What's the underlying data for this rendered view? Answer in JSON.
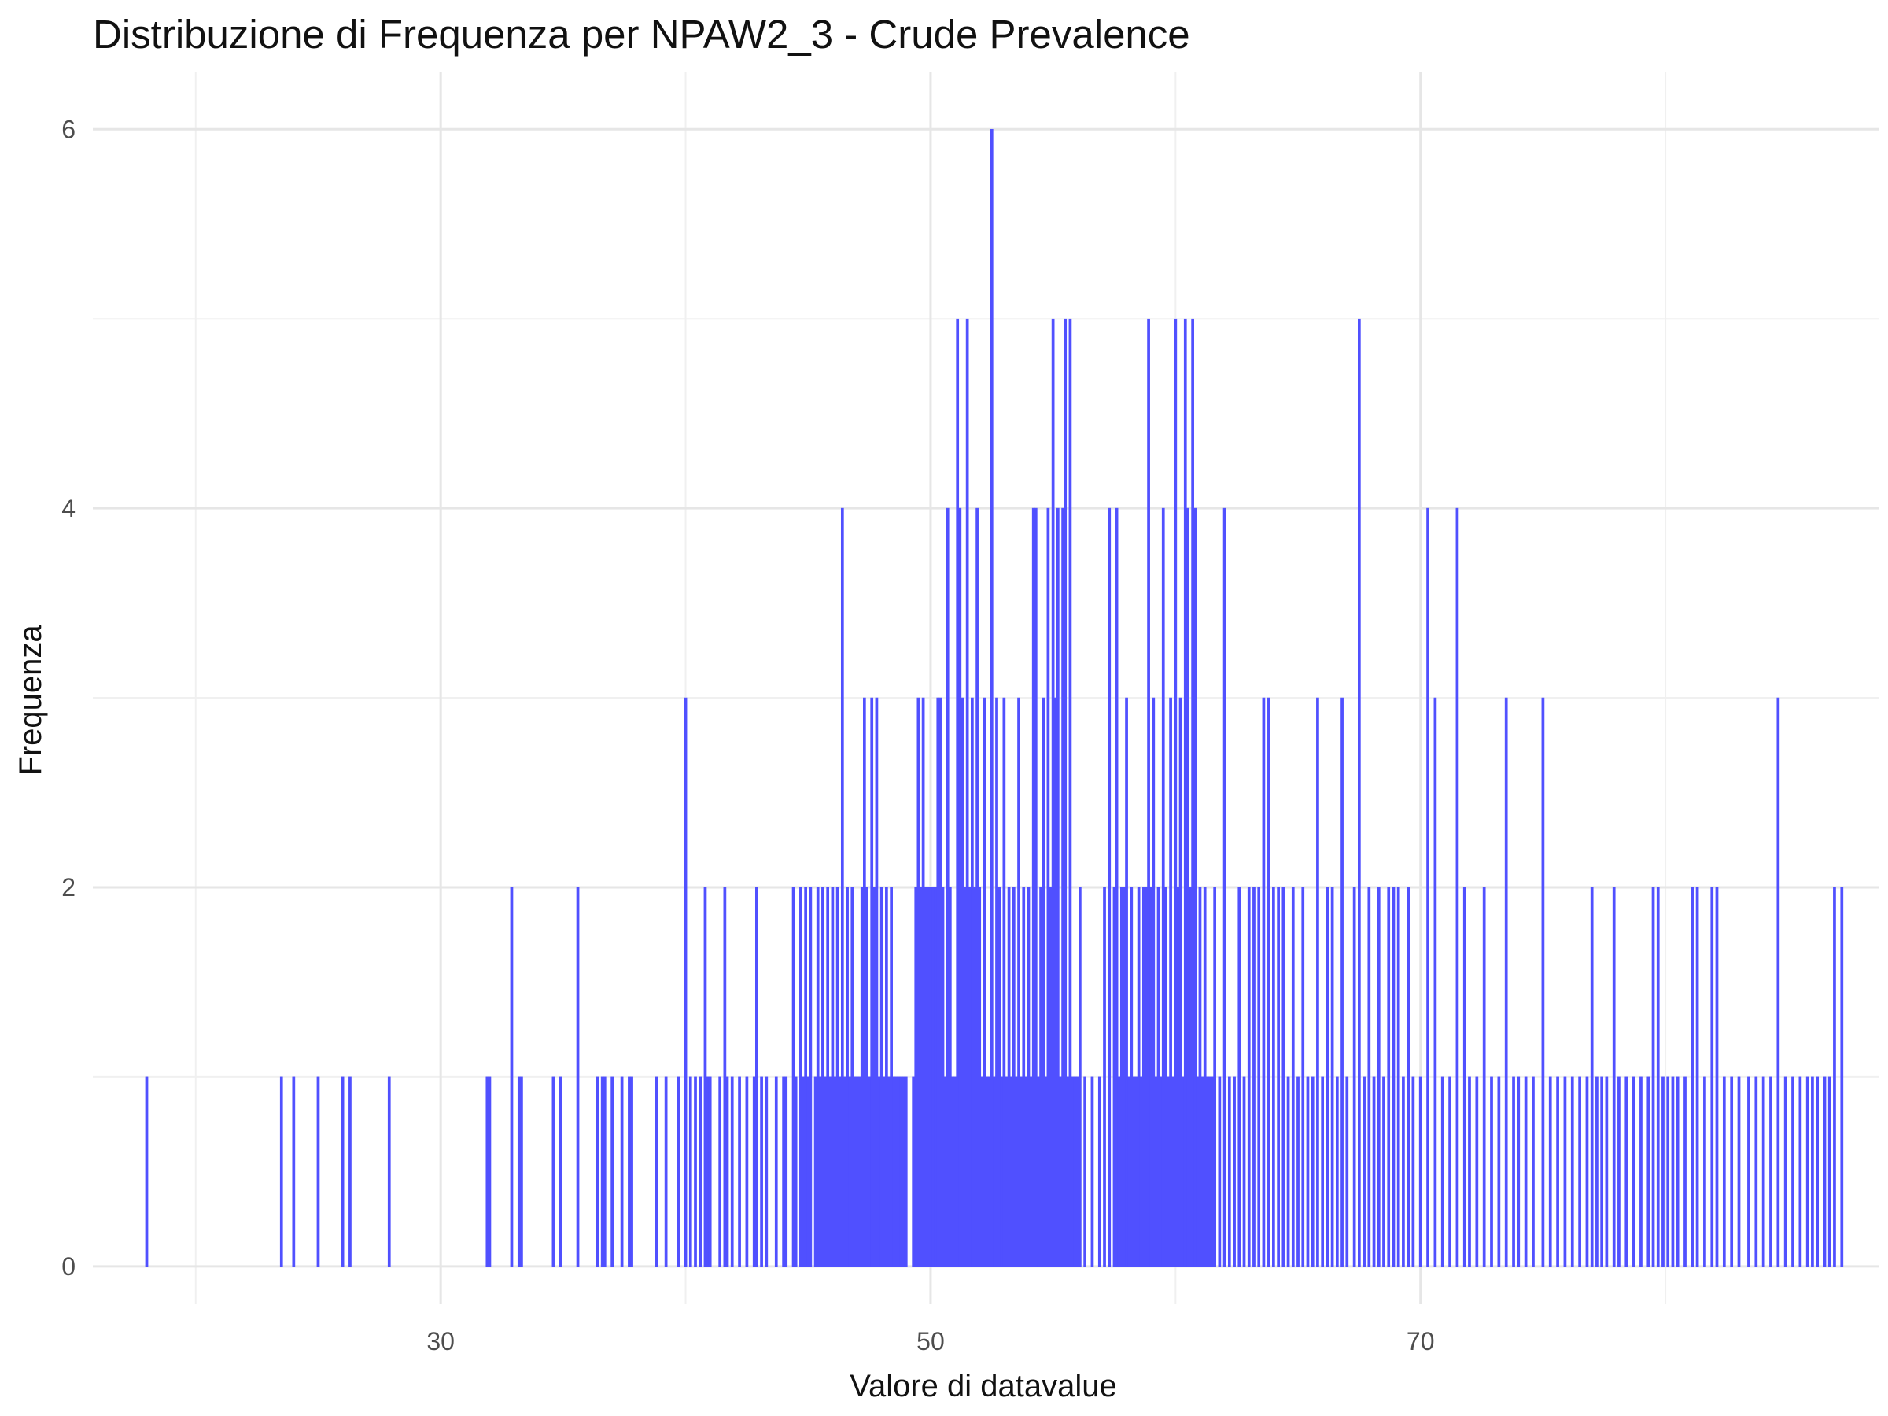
{
  "chart_data": {
    "type": "bar",
    "title": "Distribuzione di Frequenza per NPAW2_3 - Crude Prevalence",
    "xlabel": "Valore di datavalue",
    "ylabel": "Frequenza",
    "xlim": [
      15.8,
      88.7
    ],
    "ylim": [
      -0.2,
      6.3
    ],
    "x_ticks": [
      30,
      50,
      70
    ],
    "y_ticks": [
      0,
      2,
      4,
      6
    ],
    "grid": true,
    "legend": "none",
    "bar_color": "#5050FF",
    "points": [
      [
        18.0,
        1
      ],
      [
        23.5,
        1
      ],
      [
        24.0,
        1
      ],
      [
        25.0,
        1
      ],
      [
        26.0,
        1
      ],
      [
        26.3,
        1
      ],
      [
        27.9,
        1
      ],
      [
        31.9,
        1
      ],
      [
        32.0,
        1
      ],
      [
        32.9,
        2
      ],
      [
        33.2,
        1
      ],
      [
        33.3,
        1
      ],
      [
        34.6,
        1
      ],
      [
        34.9,
        1
      ],
      [
        35.6,
        2
      ],
      [
        36.4,
        1
      ],
      [
        36.6,
        1
      ],
      [
        36.7,
        1
      ],
      [
        37.0,
        1
      ],
      [
        37.4,
        1
      ],
      [
        37.7,
        1
      ],
      [
        37.8,
        1
      ],
      [
        38.8,
        1
      ],
      [
        39.2,
        1
      ],
      [
        39.7,
        1
      ],
      [
        40.0,
        3
      ],
      [
        40.2,
        1
      ],
      [
        40.4,
        1
      ],
      [
        40.6,
        1
      ],
      [
        40.8,
        2
      ],
      [
        40.9,
        1
      ],
      [
        41.0,
        1
      ],
      [
        41.4,
        1
      ],
      [
        41.6,
        2
      ],
      [
        41.7,
        1
      ],
      [
        41.9,
        1
      ],
      [
        42.2,
        1
      ],
      [
        42.5,
        1
      ],
      [
        42.8,
        1
      ],
      [
        42.9,
        2
      ],
      [
        43.1,
        1
      ],
      [
        43.3,
        1
      ],
      [
        43.7,
        1
      ],
      [
        44.0,
        1
      ],
      [
        44.1,
        1
      ],
      [
        44.4,
        2
      ],
      [
        44.5,
        1
      ],
      [
        44.7,
        2
      ],
      [
        44.8,
        1
      ],
      [
        44.9,
        2
      ],
      [
        45.0,
        1
      ],
      [
        45.1,
        2
      ],
      [
        45.3,
        1
      ],
      [
        45.4,
        2
      ],
      [
        45.5,
        1
      ],
      [
        45.6,
        2
      ],
      [
        45.7,
        1
      ],
      [
        45.8,
        2
      ],
      [
        45.9,
        1
      ],
      [
        46.0,
        2
      ],
      [
        46.1,
        1
      ],
      [
        46.2,
        2
      ],
      [
        46.3,
        1
      ],
      [
        46.4,
        4
      ],
      [
        46.5,
        1
      ],
      [
        46.6,
        2
      ],
      [
        46.7,
        1
      ],
      [
        46.8,
        2
      ],
      [
        46.9,
        1
      ],
      [
        47.0,
        1
      ],
      [
        47.1,
        1
      ],
      [
        47.2,
        2
      ],
      [
        47.3,
        3
      ],
      [
        47.4,
        2
      ],
      [
        47.5,
        1
      ],
      [
        47.6,
        3
      ],
      [
        47.7,
        2
      ],
      [
        47.8,
        3
      ],
      [
        47.9,
        1
      ],
      [
        48.0,
        2
      ],
      [
        48.1,
        1
      ],
      [
        48.2,
        2
      ],
      [
        48.3,
        1
      ],
      [
        48.4,
        2
      ],
      [
        48.5,
        1
      ],
      [
        48.6,
        1
      ],
      [
        48.7,
        1
      ],
      [
        48.8,
        1
      ],
      [
        48.9,
        1
      ],
      [
        49.0,
        1
      ],
      [
        49.3,
        1
      ],
      [
        49.4,
        2
      ],
      [
        49.5,
        3
      ],
      [
        49.6,
        2
      ],
      [
        49.7,
        3
      ],
      [
        49.8,
        2
      ],
      [
        49.9,
        2
      ],
      [
        50.0,
        2
      ],
      [
        50.1,
        2
      ],
      [
        50.2,
        2
      ],
      [
        50.3,
        3
      ],
      [
        50.4,
        3
      ],
      [
        50.5,
        2
      ],
      [
        50.6,
        1
      ],
      [
        50.7,
        4
      ],
      [
        50.8,
        2
      ],
      [
        50.9,
        1
      ],
      [
        51.0,
        1
      ],
      [
        51.1,
        5
      ],
      [
        51.2,
        4
      ],
      [
        51.3,
        3
      ],
      [
        51.4,
        2
      ],
      [
        51.5,
        5
      ],
      [
        51.6,
        2
      ],
      [
        51.7,
        3
      ],
      [
        51.8,
        2
      ],
      [
        51.9,
        4
      ],
      [
        52.0,
        2
      ],
      [
        52.1,
        1
      ],
      [
        52.2,
        3
      ],
      [
        52.3,
        1
      ],
      [
        52.4,
        1
      ],
      [
        52.5,
        6
      ],
      [
        52.6,
        1
      ],
      [
        52.7,
        3
      ],
      [
        52.8,
        2
      ],
      [
        52.9,
        1
      ],
      [
        53.0,
        3
      ],
      [
        53.1,
        1
      ],
      [
        53.2,
        2
      ],
      [
        53.3,
        1
      ],
      [
        53.4,
        2
      ],
      [
        53.5,
        1
      ],
      [
        53.6,
        3
      ],
      [
        53.7,
        1
      ],
      [
        53.8,
        2
      ],
      [
        53.9,
        1
      ],
      [
        54.0,
        2
      ],
      [
        54.1,
        1
      ],
      [
        54.2,
        4
      ],
      [
        54.3,
        4
      ],
      [
        54.4,
        1
      ],
      [
        54.5,
        2
      ],
      [
        54.6,
        3
      ],
      [
        54.7,
        1
      ],
      [
        54.8,
        4
      ],
      [
        54.9,
        2
      ],
      [
        55.0,
        5
      ],
      [
        55.1,
        3
      ],
      [
        55.2,
        4
      ],
      [
        55.3,
        1
      ],
      [
        55.4,
        4
      ],
      [
        55.5,
        5
      ],
      [
        55.6,
        1
      ],
      [
        55.7,
        5
      ],
      [
        55.8,
        1
      ],
      [
        55.9,
        1
      ],
      [
        56.0,
        1
      ],
      [
        56.1,
        2
      ],
      [
        56.3,
        1
      ],
      [
        56.6,
        1
      ],
      [
        56.9,
        1
      ],
      [
        57.1,
        2
      ],
      [
        57.3,
        4
      ],
      [
        57.5,
        2
      ],
      [
        57.6,
        4
      ],
      [
        57.7,
        1
      ],
      [
        57.8,
        2
      ],
      [
        57.9,
        2
      ],
      [
        58.0,
        3
      ],
      [
        58.1,
        1
      ],
      [
        58.2,
        2
      ],
      [
        58.3,
        1
      ],
      [
        58.4,
        1
      ],
      [
        58.5,
        2
      ],
      [
        58.6,
        1
      ],
      [
        58.7,
        2
      ],
      [
        58.8,
        2
      ],
      [
        58.9,
        5
      ],
      [
        59.0,
        2
      ],
      [
        59.1,
        3
      ],
      [
        59.2,
        1
      ],
      [
        59.3,
        2
      ],
      [
        59.4,
        1
      ],
      [
        59.5,
        4
      ],
      [
        59.6,
        2
      ],
      [
        59.7,
        1
      ],
      [
        59.8,
        3
      ],
      [
        59.9,
        1
      ],
      [
        60.0,
        5
      ],
      [
        60.1,
        2
      ],
      [
        60.2,
        3
      ],
      [
        60.3,
        1
      ],
      [
        60.4,
        5
      ],
      [
        60.5,
        4
      ],
      [
        60.6,
        2
      ],
      [
        60.7,
        5
      ],
      [
        60.8,
        4
      ],
      [
        60.9,
        1
      ],
      [
        61.0,
        2
      ],
      [
        61.1,
        1
      ],
      [
        61.2,
        2
      ],
      [
        61.3,
        1
      ],
      [
        61.4,
        1
      ],
      [
        61.5,
        1
      ],
      [
        61.6,
        2
      ],
      [
        61.8,
        1
      ],
      [
        62.0,
        4
      ],
      [
        62.2,
        1
      ],
      [
        62.4,
        1
      ],
      [
        62.6,
        2
      ],
      [
        62.8,
        1
      ],
      [
        63.0,
        2
      ],
      [
        63.2,
        2
      ],
      [
        63.4,
        2
      ],
      [
        63.6,
        3
      ],
      [
        63.8,
        3
      ],
      [
        64.0,
        2
      ],
      [
        64.2,
        2
      ],
      [
        64.4,
        2
      ],
      [
        64.6,
        1
      ],
      [
        64.8,
        2
      ],
      [
        65.0,
        1
      ],
      [
        65.2,
        2
      ],
      [
        65.4,
        1
      ],
      [
        65.6,
        1
      ],
      [
        65.8,
        3
      ],
      [
        66.0,
        1
      ],
      [
        66.2,
        2
      ],
      [
        66.4,
        2
      ],
      [
        66.6,
        1
      ],
      [
        66.8,
        3
      ],
      [
        67.0,
        1
      ],
      [
        67.3,
        2
      ],
      [
        67.5,
        5
      ],
      [
        67.7,
        1
      ],
      [
        67.9,
        2
      ],
      [
        68.1,
        1
      ],
      [
        68.3,
        2
      ],
      [
        68.5,
        1
      ],
      [
        68.7,
        2
      ],
      [
        68.9,
        2
      ],
      [
        69.1,
        2
      ],
      [
        69.3,
        1
      ],
      [
        69.5,
        2
      ],
      [
        69.7,
        1
      ],
      [
        70.0,
        1
      ],
      [
        70.3,
        4
      ],
      [
        70.6,
        3
      ],
      [
        70.9,
        1
      ],
      [
        71.2,
        1
      ],
      [
        71.5,
        4
      ],
      [
        71.8,
        2
      ],
      [
        72.0,
        1
      ],
      [
        72.3,
        1
      ],
      [
        72.6,
        2
      ],
      [
        72.9,
        1
      ],
      [
        73.2,
        1
      ],
      [
        73.5,
        3
      ],
      [
        73.8,
        1
      ],
      [
        74.0,
        1
      ],
      [
        74.3,
        1
      ],
      [
        74.6,
        1
      ],
      [
        75.0,
        3
      ],
      [
        75.3,
        1
      ],
      [
        75.6,
        1
      ],
      [
        75.9,
        1
      ],
      [
        76.2,
        1
      ],
      [
        76.5,
        1
      ],
      [
        76.8,
        1
      ],
      [
        77.0,
        2
      ],
      [
        77.2,
        1
      ],
      [
        77.4,
        1
      ],
      [
        77.6,
        1
      ],
      [
        77.9,
        2
      ],
      [
        78.1,
        1
      ],
      [
        78.4,
        1
      ],
      [
        78.7,
        1
      ],
      [
        79.0,
        1
      ],
      [
        79.3,
        1
      ],
      [
        79.5,
        2
      ],
      [
        79.7,
        2
      ],
      [
        79.9,
        1
      ],
      [
        80.1,
        1
      ],
      [
        80.3,
        1
      ],
      [
        80.5,
        1
      ],
      [
        80.8,
        1
      ],
      [
        81.1,
        2
      ],
      [
        81.3,
        2
      ],
      [
        81.6,
        1
      ],
      [
        81.9,
        2
      ],
      [
        82.1,
        2
      ],
      [
        82.4,
        1
      ],
      [
        82.7,
        1
      ],
      [
        83.0,
        1
      ],
      [
        83.4,
        1
      ],
      [
        83.7,
        1
      ],
      [
        84.0,
        1
      ],
      [
        84.3,
        1
      ],
      [
        84.6,
        3
      ],
      [
        84.9,
        1
      ],
      [
        85.2,
        1
      ],
      [
        85.5,
        1
      ],
      [
        85.8,
        1
      ],
      [
        86.0,
        1
      ],
      [
        86.2,
        1
      ],
      [
        86.5,
        1
      ],
      [
        86.7,
        1
      ],
      [
        86.9,
        2
      ],
      [
        87.2,
        2
      ]
    ]
  }
}
